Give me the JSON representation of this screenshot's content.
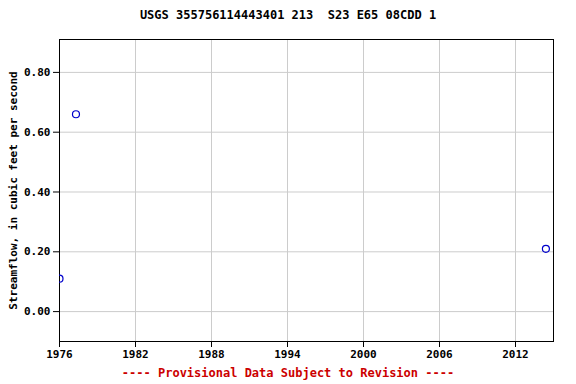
{
  "chart_data": {
    "type": "scatter",
    "title": "USGS 355756114443401 213  S23 E65 08CDD 1",
    "caption": "---- Provisional Data Subject to Revision ----",
    "y_label": "Streamflow, in cubic feet per second",
    "x": [
      1976.0,
      1977.3,
      2014.4
    ],
    "values": [
      0.11,
      0.66,
      0.21
    ],
    "color": "#0000cc",
    "marker": "open_circle",
    "xlim": [
      1976,
      2015
    ],
    "ylim": [
      -0.1,
      0.91
    ],
    "xticks": [
      1976,
      1982,
      1988,
      1994,
      2000,
      2006,
      2012
    ],
    "yticks": [
      {
        "value": 0,
        "label": "0.00"
      },
      {
        "value": 0.2,
        "label": "0.20"
      },
      {
        "value": 0.4,
        "label": "0.40"
      },
      {
        "value": 0.6,
        "label": "0.60"
      },
      {
        "value": 0.8,
        "label": "0.80"
      }
    ],
    "grid": true
  }
}
